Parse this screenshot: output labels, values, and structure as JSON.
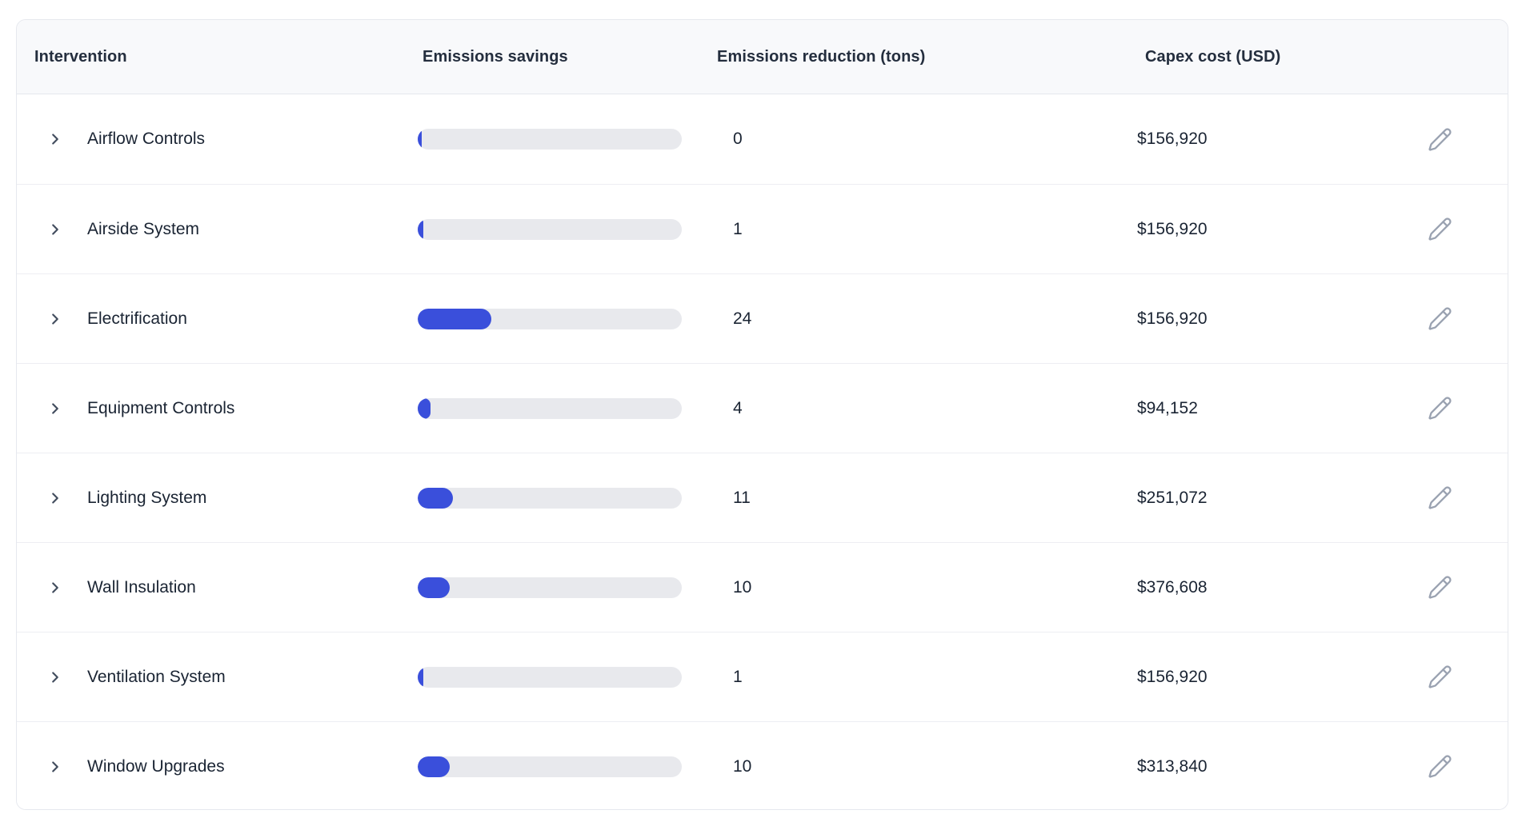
{
  "table": {
    "columns": [
      {
        "label": "Intervention"
      },
      {
        "label": "Emissions savings"
      },
      {
        "label": "Emissions reduction (tons)"
      },
      {
        "label": "Capex cost (USD)"
      }
    ],
    "rows": [
      {
        "name": "Airflow Controls",
        "reduction_tons": "0",
        "capex": "$156,920",
        "bar_percent": 1.2
      },
      {
        "name": "Airside System",
        "reduction_tons": "1",
        "capex": "$156,920",
        "bar_percent": 2.1
      },
      {
        "name": "Electrification",
        "reduction_tons": "24",
        "capex": "$156,920",
        "bar_percent": 27.9
      },
      {
        "name": "Equipment Controls",
        "reduction_tons": "4",
        "capex": "$94,152",
        "bar_percent": 4.9
      },
      {
        "name": "Lighting System",
        "reduction_tons": "11",
        "capex": "$251,072",
        "bar_percent": 13.3
      },
      {
        "name": "Wall Insulation",
        "reduction_tons": "10",
        "capex": "$376,608",
        "bar_percent": 12.1
      },
      {
        "name": "Ventilation System",
        "reduction_tons": "1",
        "capex": "$156,920",
        "bar_percent": 2.1
      },
      {
        "name": "Window Upgrades",
        "reduction_tons": "10",
        "capex": "$313,840",
        "bar_percent": 12.1
      }
    ],
    "colors": {
      "bar_fill": "#3a4fdb",
      "bar_track": "#e8e9ed",
      "header_bg": "#f8f9fb",
      "row_text": "#1a2433",
      "header_text": "#242e3e",
      "chevron": "#424d5e",
      "pencil": "#9aa2b1"
    },
    "icons": {
      "row_expand": "chevron-right-icon",
      "row_edit": "pencil-icon"
    }
  }
}
